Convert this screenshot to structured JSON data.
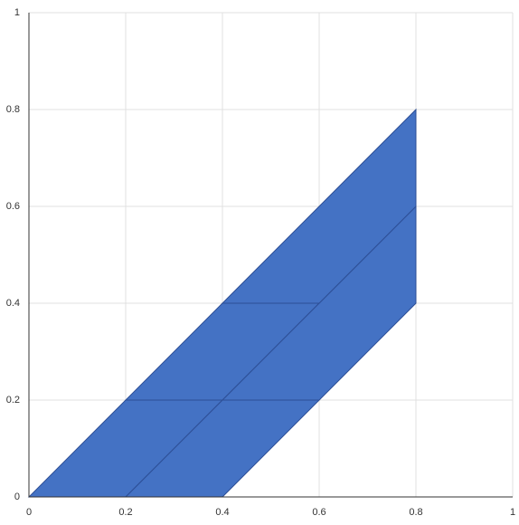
{
  "chart_data": {
    "type": "polygon",
    "color": "#4472c4",
    "edge_color": "#2d4f96",
    "series": [
      {
        "x": [
          0,
          0.2,
          0.4,
          0.2
        ],
        "values": [
          0,
          0,
          0.2,
          0.2
        ]
      },
      {
        "x": [
          0.2,
          0.4,
          0.6,
          0.4
        ],
        "values": [
          0,
          0,
          0.2,
          0.2
        ]
      },
      {
        "x": [
          0.2,
          0.4,
          0.6,
          0.4
        ],
        "values": [
          0.2,
          0.2,
          0.4,
          0.4
        ]
      },
      {
        "x": [
          0.4,
          0.6,
          0.8,
          0.8,
          0.6
        ],
        "values": [
          0.2,
          0.2,
          0.4,
          0.6,
          0.4
        ]
      },
      {
        "x": [
          0.4,
          0.6,
          0.8,
          0.8
        ],
        "values": [
          0.4,
          0.4,
          0.6,
          0.8
        ]
      }
    ],
    "xlim": [
      0,
      1
    ],
    "ylim": [
      0,
      1
    ],
    "xticks": [
      0,
      0.2,
      0.4,
      0.6,
      0.8,
      1
    ],
    "yticks": [
      0,
      0.2,
      0.4,
      0.6,
      0.8,
      1
    ],
    "grid": true
  }
}
